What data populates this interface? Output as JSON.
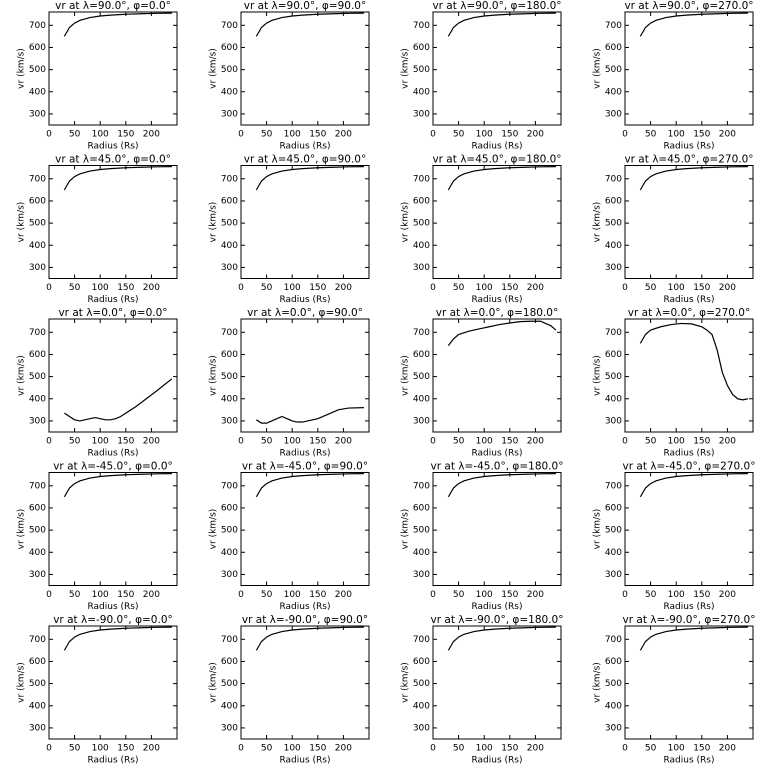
{
  "chart_data": [
    {
      "type": "line",
      "title": "vr at λ=90.0°, φ=0.0°",
      "xlabel": "Radius (Rs)",
      "ylabel": "vr (km/s)",
      "color": "#000000",
      "xlim": [
        0,
        250
      ],
      "ylim": [
        250,
        760
      ],
      "xticks": [
        0,
        50,
        100,
        150,
        200
      ],
      "yticks": [
        300,
        400,
        500,
        600,
        700
      ],
      "x": [
        30,
        40,
        50,
        60,
        80,
        100,
        120,
        150,
        180,
        210,
        240
      ],
      "values": [
        650,
        690,
        710,
        722,
        735,
        742,
        746,
        750,
        752,
        754,
        755
      ]
    },
    {
      "type": "line",
      "title": "vr at λ=90.0°, φ=90.0°",
      "xlabel": "Radius (Rs)",
      "ylabel": "vr (km/s)",
      "color": "#000000",
      "xlim": [
        0,
        250
      ],
      "ylim": [
        250,
        760
      ],
      "xticks": [
        0,
        50,
        100,
        150,
        200
      ],
      "yticks": [
        300,
        400,
        500,
        600,
        700
      ],
      "x": [
        30,
        40,
        50,
        60,
        80,
        100,
        120,
        150,
        180,
        210,
        240
      ],
      "values": [
        650,
        690,
        710,
        722,
        735,
        742,
        746,
        750,
        752,
        754,
        755
      ]
    },
    {
      "type": "line",
      "title": "vr at λ=90.0°, φ=180.0°",
      "xlabel": "Radius (Rs)",
      "ylabel": "vr (km/s)",
      "color": "#000000",
      "xlim": [
        0,
        250
      ],
      "ylim": [
        250,
        760
      ],
      "xticks": [
        0,
        50,
        100,
        150,
        200
      ],
      "yticks": [
        300,
        400,
        500,
        600,
        700
      ],
      "x": [
        30,
        40,
        50,
        60,
        80,
        100,
        120,
        150,
        180,
        210,
        240
      ],
      "values": [
        650,
        690,
        710,
        722,
        735,
        742,
        746,
        750,
        752,
        754,
        755
      ]
    },
    {
      "type": "line",
      "title": "vr at λ=90.0°, φ=270.0°",
      "xlabel": "Radius (Rs)",
      "ylabel": "vr (km/s)",
      "color": "#000000",
      "xlim": [
        0,
        250
      ],
      "ylim": [
        250,
        760
      ],
      "xticks": [
        0,
        50,
        100,
        150,
        200
      ],
      "yticks": [
        300,
        400,
        500,
        600,
        700
      ],
      "x": [
        30,
        40,
        50,
        60,
        80,
        100,
        120,
        150,
        180,
        210,
        240
      ],
      "values": [
        650,
        690,
        710,
        722,
        735,
        742,
        746,
        750,
        752,
        754,
        755
      ]
    },
    {
      "type": "line",
      "title": "vr at λ=45.0°, φ=0.0°",
      "xlabel": "Radius (Rs)",
      "ylabel": "vr (km/s)",
      "color": "#000000",
      "xlim": [
        0,
        250
      ],
      "ylim": [
        250,
        760
      ],
      "xticks": [
        0,
        50,
        100,
        150,
        200
      ],
      "yticks": [
        300,
        400,
        500,
        600,
        700
      ],
      "x": [
        30,
        40,
        50,
        60,
        80,
        100,
        120,
        150,
        180,
        210,
        240
      ],
      "values": [
        650,
        690,
        710,
        722,
        735,
        742,
        746,
        750,
        752,
        754,
        755
      ]
    },
    {
      "type": "line",
      "title": "vr at λ=45.0°, φ=90.0°",
      "xlabel": "Radius (Rs)",
      "ylabel": "vr (km/s)",
      "color": "#000000",
      "xlim": [
        0,
        250
      ],
      "ylim": [
        250,
        760
      ],
      "xticks": [
        0,
        50,
        100,
        150,
        200
      ],
      "yticks": [
        300,
        400,
        500,
        600,
        700
      ],
      "x": [
        30,
        40,
        50,
        60,
        80,
        100,
        120,
        150,
        180,
        210,
        240
      ],
      "values": [
        650,
        690,
        710,
        722,
        735,
        742,
        746,
        750,
        752,
        754,
        755
      ]
    },
    {
      "type": "line",
      "title": "vr at λ=45.0°, φ=180.0°",
      "xlabel": "Radius (Rs)",
      "ylabel": "vr (km/s)",
      "color": "#000000",
      "xlim": [
        0,
        250
      ],
      "ylim": [
        250,
        760
      ],
      "xticks": [
        0,
        50,
        100,
        150,
        200
      ],
      "yticks": [
        300,
        400,
        500,
        600,
        700
      ],
      "x": [
        30,
        40,
        50,
        60,
        80,
        100,
        120,
        150,
        180,
        210,
        240
      ],
      "values": [
        650,
        690,
        710,
        722,
        735,
        742,
        746,
        750,
        752,
        754,
        755
      ]
    },
    {
      "type": "line",
      "title": "vr at λ=45.0°, φ=270.0°",
      "xlabel": "Radius (Rs)",
      "ylabel": "vr (km/s)",
      "color": "#000000",
      "xlim": [
        0,
        250
      ],
      "ylim": [
        250,
        760
      ],
      "xticks": [
        0,
        50,
        100,
        150,
        200
      ],
      "yticks": [
        300,
        400,
        500,
        600,
        700
      ],
      "x": [
        30,
        40,
        50,
        60,
        80,
        100,
        120,
        150,
        180,
        210,
        240
      ],
      "values": [
        650,
        690,
        710,
        722,
        735,
        742,
        746,
        750,
        752,
        754,
        755
      ]
    },
    {
      "type": "line",
      "title": "vr at λ=0.0°, φ=0.0°",
      "xlabel": "Radius (Rs)",
      "ylabel": "vr (km/s)",
      "color": "#000000",
      "xlim": [
        0,
        250
      ],
      "ylim": [
        250,
        760
      ],
      "xticks": [
        0,
        50,
        100,
        150,
        200
      ],
      "yticks": [
        300,
        400,
        500,
        600,
        700
      ],
      "x": [
        30,
        40,
        50,
        60,
        70,
        80,
        90,
        100,
        110,
        120,
        130,
        140,
        150,
        170,
        190,
        210,
        240
      ],
      "values": [
        335,
        320,
        305,
        300,
        305,
        310,
        315,
        310,
        305,
        305,
        310,
        320,
        335,
        365,
        400,
        435,
        490
      ]
    },
    {
      "type": "line",
      "title": "vr at λ=0.0°, φ=90.0°",
      "xlabel": "Radius (Rs)",
      "ylabel": "vr (km/s)",
      "color": "#000000",
      "xlim": [
        0,
        250
      ],
      "ylim": [
        250,
        760
      ],
      "xticks": [
        0,
        50,
        100,
        150,
        200
      ],
      "yticks": [
        300,
        400,
        500,
        600,
        700
      ],
      "x": [
        30,
        40,
        50,
        60,
        70,
        80,
        90,
        100,
        110,
        120,
        130,
        150,
        170,
        190,
        210,
        240
      ],
      "values": [
        305,
        290,
        290,
        300,
        310,
        320,
        310,
        300,
        295,
        295,
        300,
        310,
        330,
        350,
        358,
        360
      ]
    },
    {
      "type": "line",
      "title": "vr at λ=0.0°, φ=180.0°",
      "xlabel": "Radius (Rs)",
      "ylabel": "vr (km/s)",
      "color": "#000000",
      "xlim": [
        0,
        250
      ],
      "ylim": [
        250,
        760
      ],
      "xticks": [
        0,
        50,
        100,
        150,
        200
      ],
      "yticks": [
        300,
        400,
        500,
        600,
        700
      ],
      "x": [
        30,
        40,
        50,
        70,
        90,
        110,
        130,
        150,
        170,
        190,
        210,
        230,
        240
      ],
      "values": [
        640,
        670,
        690,
        705,
        715,
        725,
        735,
        742,
        748,
        750,
        750,
        730,
        710
      ]
    },
    {
      "type": "line",
      "title": "vr at λ=0.0°, φ=270.0°",
      "xlabel": "Radius (Rs)",
      "ylabel": "vr (km/s)",
      "color": "#000000",
      "xlim": [
        0,
        250
      ],
      "ylim": [
        250,
        760
      ],
      "xticks": [
        0,
        50,
        100,
        150,
        200
      ],
      "yticks": [
        300,
        400,
        500,
        600,
        700
      ],
      "x": [
        30,
        40,
        50,
        70,
        90,
        110,
        130,
        150,
        160,
        170,
        180,
        190,
        200,
        210,
        220,
        230,
        240
      ],
      "values": [
        650,
        690,
        710,
        725,
        735,
        740,
        738,
        725,
        710,
        690,
        620,
        520,
        460,
        420,
        400,
        395,
        400
      ]
    },
    {
      "type": "line",
      "title": "vr at λ=-45.0°, φ=0.0°",
      "xlabel": "Radius (Rs)",
      "ylabel": "vr (km/s)",
      "color": "#000000",
      "xlim": [
        0,
        250
      ],
      "ylim": [
        250,
        760
      ],
      "xticks": [
        0,
        50,
        100,
        150,
        200
      ],
      "yticks": [
        300,
        400,
        500,
        600,
        700
      ],
      "x": [
        30,
        40,
        50,
        60,
        80,
        100,
        120,
        150,
        180,
        210,
        240
      ],
      "values": [
        650,
        690,
        710,
        722,
        735,
        742,
        746,
        750,
        752,
        754,
        755
      ]
    },
    {
      "type": "line",
      "title": "vr at λ=-45.0°, φ=90.0°",
      "xlabel": "Radius (Rs)",
      "ylabel": "vr (km/s)",
      "color": "#000000",
      "xlim": [
        0,
        250
      ],
      "ylim": [
        250,
        760
      ],
      "xticks": [
        0,
        50,
        100,
        150,
        200
      ],
      "yticks": [
        300,
        400,
        500,
        600,
        700
      ],
      "x": [
        30,
        40,
        50,
        60,
        80,
        100,
        120,
        150,
        180,
        210,
        240
      ],
      "values": [
        650,
        690,
        710,
        722,
        735,
        742,
        746,
        750,
        752,
        754,
        755
      ]
    },
    {
      "type": "line",
      "title": "vr at λ=-45.0°, φ=180.0°",
      "xlabel": "Radius (Rs)",
      "ylabel": "vr (km/s)",
      "color": "#000000",
      "xlim": [
        0,
        250
      ],
      "ylim": [
        250,
        760
      ],
      "xticks": [
        0,
        50,
        100,
        150,
        200
      ],
      "yticks": [
        300,
        400,
        500,
        600,
        700
      ],
      "x": [
        30,
        40,
        50,
        60,
        80,
        100,
        120,
        150,
        180,
        210,
        240
      ],
      "values": [
        650,
        690,
        710,
        722,
        735,
        742,
        746,
        750,
        752,
        754,
        755
      ]
    },
    {
      "type": "line",
      "title": "vr at λ=-45.0°, φ=270.0°",
      "xlabel": "Radius (Rs)",
      "ylabel": "vr (km/s)",
      "color": "#000000",
      "xlim": [
        0,
        250
      ],
      "ylim": [
        250,
        760
      ],
      "xticks": [
        0,
        50,
        100,
        150,
        200
      ],
      "yticks": [
        300,
        400,
        500,
        600,
        700
      ],
      "x": [
        30,
        40,
        50,
        60,
        80,
        100,
        120,
        150,
        180,
        210,
        240
      ],
      "values": [
        650,
        690,
        710,
        722,
        735,
        742,
        746,
        750,
        752,
        754,
        755
      ]
    },
    {
      "type": "line",
      "title": "vr at λ=-90.0°, φ=0.0°",
      "xlabel": "Radius (Rs)",
      "ylabel": "vr (km/s)",
      "color": "#000000",
      "xlim": [
        0,
        250
      ],
      "ylim": [
        250,
        760
      ],
      "xticks": [
        0,
        50,
        100,
        150,
        200
      ],
      "yticks": [
        300,
        400,
        500,
        600,
        700
      ],
      "x": [
        30,
        40,
        50,
        60,
        80,
        100,
        120,
        150,
        180,
        210,
        240
      ],
      "values": [
        650,
        690,
        710,
        722,
        735,
        742,
        746,
        750,
        752,
        754,
        755
      ]
    },
    {
      "type": "line",
      "title": "vr at λ=-90.0°, φ=90.0°",
      "xlabel": "Radius (Rs)",
      "ylabel": "vr (km/s)",
      "color": "#000000",
      "xlim": [
        0,
        250
      ],
      "ylim": [
        250,
        760
      ],
      "xticks": [
        0,
        50,
        100,
        150,
        200
      ],
      "yticks": [
        300,
        400,
        500,
        600,
        700
      ],
      "x": [
        30,
        40,
        50,
        60,
        80,
        100,
        120,
        150,
        180,
        210,
        240
      ],
      "values": [
        650,
        690,
        710,
        722,
        735,
        742,
        746,
        750,
        752,
        754,
        755
      ]
    },
    {
      "type": "line",
      "title": "vr at λ=-90.0°, φ=180.0°",
      "xlabel": "Radius (Rs)",
      "ylabel": "vr (km/s)",
      "color": "#000000",
      "xlim": [
        0,
        250
      ],
      "ylim": [
        250,
        760
      ],
      "xticks": [
        0,
        50,
        100,
        150,
        200
      ],
      "yticks": [
        300,
        400,
        500,
        600,
        700
      ],
      "x": [
        30,
        40,
        50,
        60,
        80,
        100,
        120,
        150,
        180,
        210,
        240
      ],
      "values": [
        650,
        690,
        710,
        722,
        735,
        742,
        746,
        750,
        752,
        754,
        755
      ]
    },
    {
      "type": "line",
      "title": "vr at λ=-90.0°, φ=270.0°",
      "xlabel": "Radius (Rs)",
      "ylabel": "vr (km/s)",
      "color": "#000000",
      "xlim": [
        0,
        250
      ],
      "ylim": [
        250,
        760
      ],
      "xticks": [
        0,
        50,
        100,
        150,
        200
      ],
      "yticks": [
        300,
        400,
        500,
        600,
        700
      ],
      "x": [
        30,
        40,
        50,
        60,
        80,
        100,
        120,
        150,
        180,
        210,
        240
      ],
      "values": [
        650,
        690,
        710,
        722,
        735,
        742,
        746,
        750,
        752,
        754,
        755
      ]
    }
  ]
}
